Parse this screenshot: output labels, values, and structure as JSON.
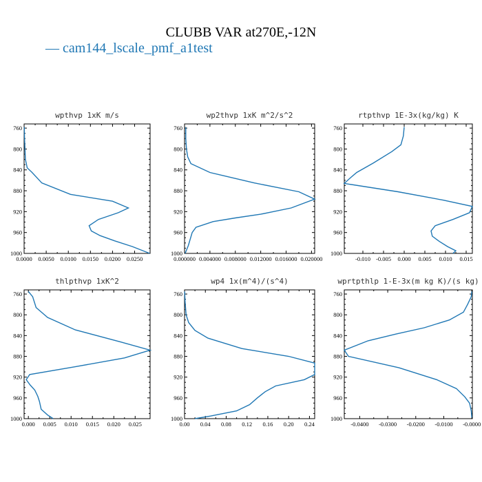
{
  "page": {
    "title": "CLUBB VAR at270E,-12N",
    "legend": [
      {
        "label": "cam144_lscale_pmf_a1test",
        "color": "#1f77b4"
      }
    ]
  },
  "chart_data": [
    {
      "type": "line",
      "title": "wpthvp  1xK m/s",
      "xlim": [
        0,
        0.0285
      ],
      "ylim": [
        1000,
        752
      ],
      "xticks": [
        0,
        0.005,
        0.01,
        0.015,
        0.02,
        0.025
      ],
      "xtick_labels": [
        "0.0000",
        "0.0050",
        "0.0100",
        "0.0150",
        "0.0200",
        "0.0250"
      ],
      "yticks": [
        760,
        800,
        840,
        880,
        920,
        960,
        1000
      ],
      "series": [
        {
          "color": "#1f77b4",
          "x": [
            5e-05,
            0.0001,
            0.0002,
            0.0003,
            0.0007,
            0.0018,
            0.004,
            0.0105,
            0.02,
            0.0236,
            0.0213,
            0.0168,
            0.0147,
            0.0152,
            0.0172,
            0.0205,
            0.0245,
            0.0284
          ],
          "y": [
            758,
            780,
            800,
            820,
            836,
            845,
            865,
            887,
            900,
            913,
            922,
            935,
            947,
            957,
            966,
            976,
            987,
            1000
          ]
        }
      ]
    },
    {
      "type": "line",
      "title": "wp2thvp  1xK m^2/s^2",
      "xlim": [
        0,
        0.0205
      ],
      "ylim": [
        1000,
        752
      ],
      "xticks": [
        0,
        0.004,
        0.008,
        0.012,
        0.016,
        0.02
      ],
      "xtick_labels": [
        "0.000000",
        "0.004000",
        "0.008000",
        "0.012000",
        "0.016000",
        "0.020000"
      ],
      "yticks": [
        760,
        800,
        840,
        880,
        920,
        960,
        1000
      ],
      "series": [
        {
          "color": "#1f77b4",
          "x": [
            0.0002,
            0.0002,
            0.0003,
            0.0005,
            0.001,
            0.004,
            0.011,
            0.018,
            0.0205,
            0.0168,
            0.012,
            0.008,
            0.0045,
            0.0018,
            0.0012,
            0.0006,
            0.0001
          ],
          "y": [
            758,
            780,
            800,
            815,
            828,
            845,
            865,
            882,
            896,
            913,
            925,
            932,
            939,
            950,
            960,
            985,
            1000
          ]
        }
      ]
    },
    {
      "type": "line",
      "title": "rtpthvp  1E-3x(kg/kg) K",
      "xlim": [
        -0.0145,
        0.0165
      ],
      "ylim": [
        1000,
        752
      ],
      "xticks": [
        -0.01,
        -0.005,
        0,
        0.005,
        0.01,
        0.015
      ],
      "xtick_labels": [
        "-0.010",
        "-0.005",
        "0.000",
        "0.005",
        "0.010",
        "0.015"
      ],
      "yticks": [
        760,
        800,
        840,
        880,
        920,
        960,
        1000
      ],
      "series": [
        {
          "color": "#1f77b4",
          "x": [
            0.0,
            -0.0002,
            -0.0008,
            -0.003,
            -0.0075,
            -0.0115,
            -0.013,
            -0.0145,
            -0.0015,
            0.0095,
            0.0165,
            0.0158,
            0.0118,
            0.0075,
            0.0065,
            0.0068,
            0.0085,
            0.0105,
            0.0125,
            0.0118
          ],
          "y": [
            758,
            775,
            792,
            805,
            827,
            845,
            855,
            866,
            882,
            898,
            910,
            922,
            935,
            947,
            957,
            967,
            977,
            987,
            995,
            1000
          ]
        }
      ]
    },
    {
      "type": "line",
      "title": "thlpthvp  1xK^2",
      "xlim": [
        -0.001,
        0.0285
      ],
      "ylim": [
        1000,
        752
      ],
      "xticks": [
        0,
        0.005,
        0.01,
        0.015,
        0.02,
        0.025
      ],
      "xtick_labels": [
        "0.000",
        "0.005",
        "0.010",
        "0.015",
        "0.020",
        "0.025"
      ],
      "yticks": [
        760,
        800,
        840,
        880,
        920,
        960,
        1000
      ],
      "series": [
        {
          "color": "#1f77b4",
          "x": [
            0.0,
            0.001,
            0.0018,
            0.0045,
            0.011,
            0.0215,
            0.0285,
            0.0225,
            0.011,
            0.0003,
            -0.0005,
            0.0004,
            0.0015,
            0.0022,
            0.0026,
            0.003,
            0.0045,
            0.0058
          ],
          "y": [
            755,
            765,
            786,
            805,
            829,
            852,
            868,
            883,
            900,
            915,
            925,
            935,
            945,
            957,
            967,
            982,
            993,
            1000
          ]
        }
      ]
    },
    {
      "type": "line",
      "title": "wp4  1x(m^4)/(s^4)",
      "xlim": [
        0,
        0.25
      ],
      "ylim": [
        1000,
        752
      ],
      "xticks": [
        0,
        0.04,
        0.08,
        0.12,
        0.16,
        0.2,
        0.24
      ],
      "xtick_labels": [
        "0.00",
        "0.04",
        "0.08",
        "0.12",
        "0.16",
        "0.20",
        "0.24"
      ],
      "yticks": [
        760,
        800,
        840,
        880,
        920,
        960,
        1000
      ],
      "series": [
        {
          "color": "#1f77b4",
          "x": [
            0.0003,
            0.001,
            0.003,
            0.008,
            0.02,
            0.045,
            0.11,
            0.2,
            0.25,
            0.25,
            0.23,
            0.175,
            0.155,
            0.14,
            0.125,
            0.1,
            0.05,
            0.02
          ],
          "y": [
            755,
            775,
            800,
            815,
            830,
            845,
            865,
            880,
            893,
            915,
            925,
            937,
            948,
            960,
            973,
            985,
            995,
            1000
          ]
        }
      ]
    },
    {
      "type": "line",
      "title": "wprtpthlp  1-E-3x(m kg K)/(s kg)",
      "xlim": [
        -0.0455,
        0.0002
      ],
      "ylim": [
        1000,
        752
      ],
      "xticks": [
        -0.04,
        -0.03,
        -0.02,
        -0.01,
        0
      ],
      "xtick_labels": [
        "-0.0400",
        "-0.0300",
        "-0.0200",
        "-0.0100",
        "-0.0000"
      ],
      "yticks": [
        760,
        800,
        840,
        880,
        920,
        960,
        1000
      ],
      "series": [
        {
          "color": "#1f77b4",
          "x": [
            0.0,
            -0.0002,
            -0.0015,
            -0.003,
            -0.008,
            -0.017,
            -0.027,
            -0.037,
            -0.0455,
            -0.044,
            -0.026,
            -0.0125,
            -0.0055,
            -0.0025,
            -0.0008,
            -0.0002,
            0.0
          ],
          "y": [
            755,
            765,
            780,
            795,
            810,
            825,
            837,
            850,
            868,
            880,
            902,
            925,
            942,
            958,
            970,
            985,
            998
          ]
        }
      ]
    }
  ]
}
